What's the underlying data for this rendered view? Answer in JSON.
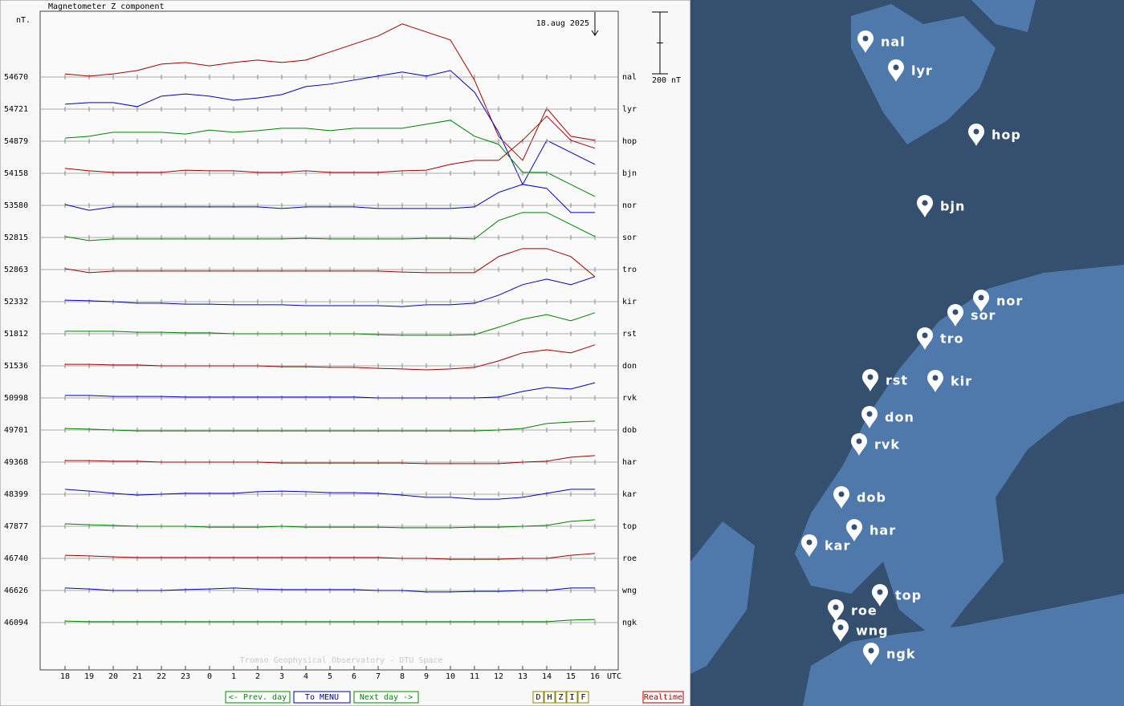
{
  "chart_data": {
    "type": "line",
    "title": "Magnetometer Z component",
    "unit_label": "nT.",
    "date": "18.aug 2025",
    "credit": "Tromso Geophysical Observatory - DTU Space",
    "x_unit": "UTC",
    "scale_bar": {
      "value": 200,
      "label": "200 nT"
    },
    "categories": [
      "18",
      "19",
      "20",
      "21",
      "22",
      "23",
      "0",
      "1",
      "2",
      "3",
      "4",
      "5",
      "6",
      "7",
      "8",
      "9",
      "10",
      "11",
      "12",
      "13",
      "14",
      "15",
      "16"
    ],
    "series": [
      {
        "name": "nal",
        "baseline": 54670,
        "color": "#a00000",
        "values": [
          10,
          3,
          10,
          21,
          42,
          47,
          36,
          47,
          55,
          47,
          55,
          81,
          107,
          133,
          172,
          146,
          120,
          -10,
          -192,
          -270,
          -101,
          -192,
          -205
        ]
      },
      {
        "name": "lyr",
        "baseline": 54721,
        "color": "#0000c0",
        "values": [
          16,
          21,
          21,
          8,
          42,
          49,
          42,
          29,
          36,
          47,
          73,
          81,
          94,
          107,
          120,
          107,
          125,
          55,
          -75,
          -244,
          -101,
          -140,
          -179
        ]
      },
      {
        "name": "hop",
        "baseline": 54879,
        "color": "#008000",
        "values": [
          10,
          16,
          29,
          29,
          29,
          23,
          36,
          29,
          34,
          42,
          42,
          34,
          42,
          42,
          42,
          55,
          68,
          16,
          -10,
          -101,
          -101,
          -140,
          -179
        ]
      },
      {
        "name": "bjn",
        "baseline": 54158,
        "color": "#a00000",
        "values": [
          16,
          8,
          3,
          3,
          3,
          10,
          8,
          8,
          3,
          3,
          8,
          3,
          3,
          3,
          8,
          10,
          29,
          42,
          42,
          107,
          185,
          107,
          81
        ]
      },
      {
        "name": "nor",
        "baseline": 53580,
        "color": "#0000c0",
        "values": [
          3,
          -16,
          -5,
          -5,
          -5,
          -5,
          -5,
          -5,
          -5,
          -10,
          -5,
          -5,
          -5,
          -10,
          -10,
          -10,
          -10,
          -5,
          42,
          68,
          55,
          -23,
          -23
        ]
      },
      {
        "name": "sor",
        "baseline": 52815,
        "color": "#008000",
        "values": [
          3,
          -10,
          -5,
          -5,
          -5,
          -5,
          -5,
          -5,
          -5,
          -5,
          -3,
          -5,
          -5,
          -5,
          -5,
          -3,
          -3,
          -5,
          55,
          81,
          81,
          42,
          3
        ]
      },
      {
        "name": "tro",
        "baseline": 52863,
        "color": "#a00000",
        "values": [
          3,
          -10,
          -5,
          -5,
          -5,
          -5,
          -5,
          -5,
          -5,
          -5,
          -5,
          -5,
          -5,
          -5,
          -8,
          -10,
          -10,
          -10,
          42,
          68,
          68,
          42,
          -23
        ]
      },
      {
        "name": "kir",
        "baseline": 52332,
        "color": "#0000c0",
        "values": [
          5,
          3,
          0,
          -5,
          -5,
          -8,
          -8,
          -10,
          -10,
          -10,
          -13,
          -13,
          -13,
          -13,
          -16,
          -10,
          -10,
          -5,
          21,
          55,
          73,
          55,
          81
        ]
      },
      {
        "name": "rst",
        "baseline": 51812,
        "color": "#008000",
        "values": [
          8,
          8,
          8,
          5,
          5,
          3,
          3,
          0,
          0,
          0,
          0,
          0,
          0,
          -3,
          -5,
          -5,
          -5,
          -3,
          21,
          47,
          62,
          42,
          68
        ]
      },
      {
        "name": "don",
        "baseline": 51536,
        "color": "#a00000",
        "values": [
          5,
          5,
          3,
          3,
          0,
          0,
          0,
          0,
          0,
          -3,
          -3,
          -5,
          -5,
          -8,
          -10,
          -13,
          -10,
          -5,
          16,
          42,
          52,
          42,
          68
        ]
      },
      {
        "name": "rvk",
        "baseline": 50998,
        "color": "#0000c0",
        "values": [
          8,
          8,
          5,
          5,
          5,
          3,
          3,
          3,
          3,
          3,
          3,
          3,
          3,
          0,
          0,
          0,
          0,
          0,
          3,
          21,
          34,
          29,
          49
        ]
      },
      {
        "name": "dob",
        "baseline": 49701,
        "color": "#008000",
        "values": [
          5,
          3,
          0,
          -3,
          -3,
          -3,
          -3,
          -3,
          -3,
          -3,
          -3,
          -3,
          -3,
          -3,
          -3,
          -3,
          -3,
          -3,
          0,
          5,
          21,
          26,
          29
        ]
      },
      {
        "name": "har",
        "baseline": 49368,
        "color": "#a00000",
        "values": [
          5,
          5,
          3,
          3,
          0,
          0,
          0,
          0,
          0,
          -3,
          -3,
          -3,
          -3,
          -3,
          -3,
          -5,
          -5,
          -5,
          -5,
          0,
          3,
          16,
          21
        ]
      },
      {
        "name": "kar",
        "baseline": 48399,
        "color": "#0000c0",
        "values": [
          16,
          10,
          3,
          -3,
          0,
          3,
          3,
          3,
          8,
          10,
          8,
          5,
          5,
          3,
          -3,
          -10,
          -10,
          -16,
          -16,
          -10,
          3,
          16,
          16
        ]
      },
      {
        "name": "top",
        "baseline": 47877,
        "color": "#008000",
        "values": [
          8,
          5,
          3,
          0,
          0,
          0,
          -3,
          -3,
          -3,
          0,
          -3,
          -3,
          -3,
          -3,
          -5,
          -5,
          -5,
          -3,
          -3,
          0,
          3,
          16,
          21
        ]
      },
      {
        "name": "roe",
        "baseline": 46740,
        "color": "#a00000",
        "values": [
          10,
          8,
          5,
          3,
          3,
          3,
          3,
          3,
          3,
          3,
          3,
          3,
          3,
          3,
          0,
          0,
          -3,
          -3,
          -3,
          0,
          0,
          10,
          16
        ]
      },
      {
        "name": "wng",
        "baseline": 46626,
        "color": "#0000c0",
        "values": [
          8,
          5,
          0,
          0,
          0,
          3,
          5,
          8,
          5,
          3,
          3,
          3,
          3,
          0,
          0,
          -5,
          -5,
          -3,
          -3,
          0,
          0,
          8,
          8
        ]
      },
      {
        "name": "ngk",
        "baseline": 46094,
        "color": "#008000",
        "values": [
          5,
          3,
          3,
          3,
          3,
          3,
          3,
          3,
          3,
          3,
          3,
          3,
          3,
          3,
          3,
          3,
          3,
          3,
          3,
          3,
          3,
          8,
          10
        ]
      }
    ]
  },
  "navigation": {
    "prev": "<- Prev. day",
    "menu": "To MENU",
    "next": "Next day ->",
    "components": [
      "D",
      "H",
      "Z",
      "I",
      "F"
    ],
    "realtime": "Realtime"
  }
}
